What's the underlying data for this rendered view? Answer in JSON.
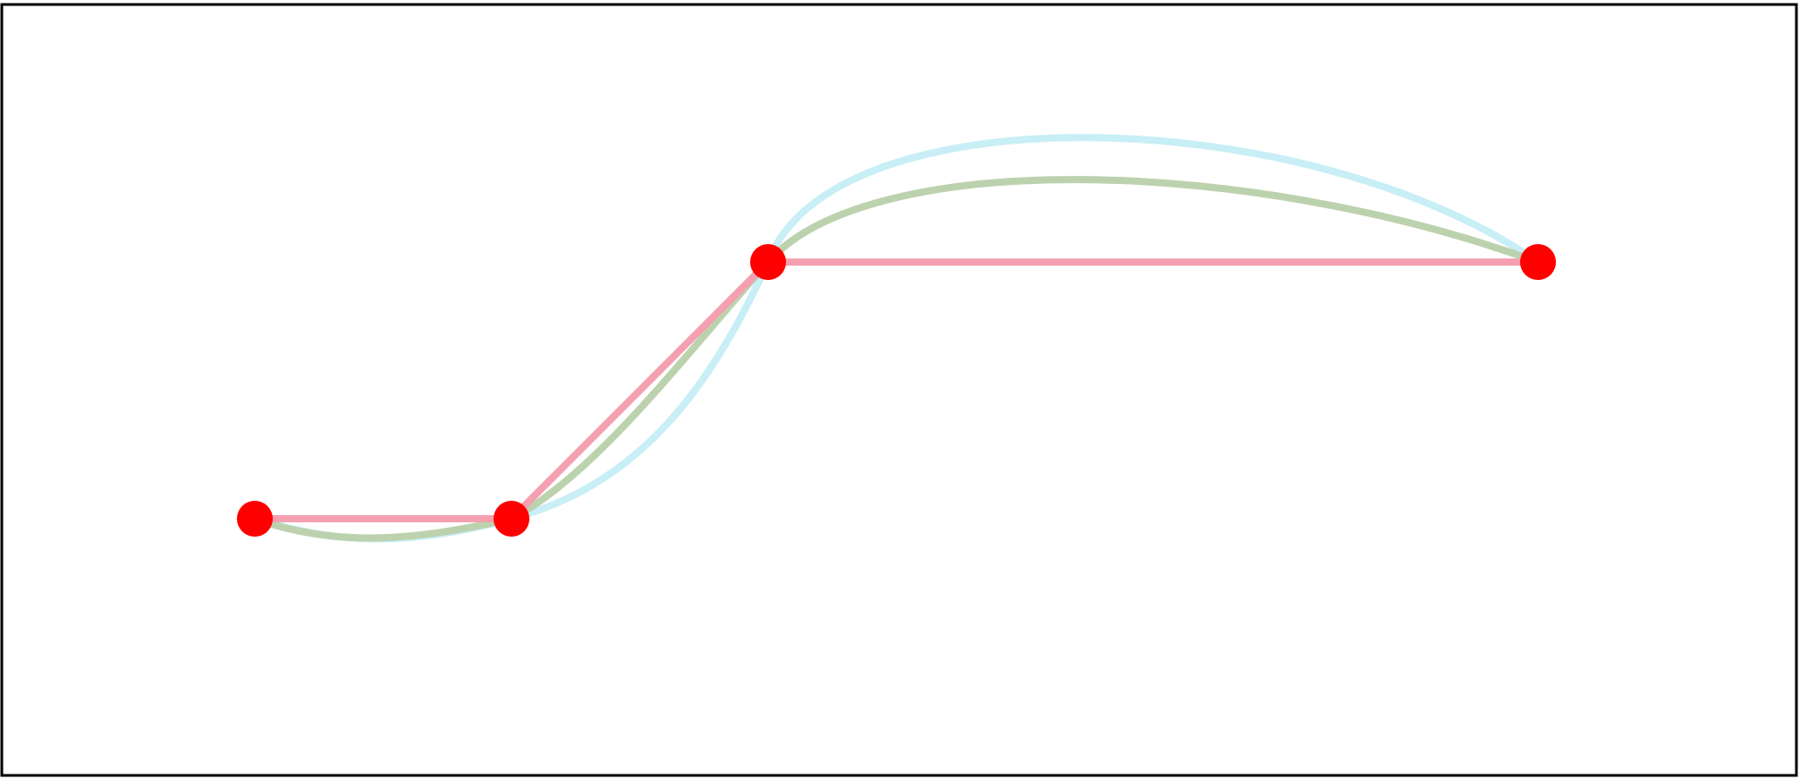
{
  "diagram": {
    "type": "interpolation-curves",
    "description_shown": "",
    "colors": {
      "border": "#000000",
      "background": "#ffffff",
      "control_point": "#ff0000",
      "linear": "#f4a0b0",
      "curve_a": "#bcd2ae",
      "curve_b": "#c8eef6"
    },
    "control_points": [
      {
        "x": 0,
        "y": 0
      },
      {
        "x": 1,
        "y": 0
      },
      {
        "x": 2,
        "y": 1
      },
      {
        "x": 5,
        "y": 1
      }
    ],
    "curves": [
      {
        "id": "linear",
        "style": "polyline"
      },
      {
        "id": "curve_a",
        "style": "smooth"
      },
      {
        "id": "curve_b",
        "style": "smooth"
      }
    ]
  }
}
